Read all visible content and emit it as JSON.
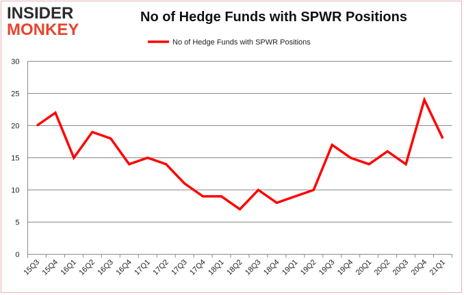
{
  "logo": {
    "line1": "INSIDER",
    "line2": "MONKEY"
  },
  "chart_data": {
    "type": "line",
    "title": "No of Hedge Funds with SPWR Positions",
    "categories": [
      "15Q3",
      "15Q4",
      "16Q1",
      "16Q2",
      "16Q3",
      "16Q4",
      "17Q1",
      "17Q2",
      "17Q3",
      "17Q4",
      "18Q1",
      "18Q2",
      "18Q3",
      "18Q4",
      "19Q1",
      "19Q2",
      "19Q3",
      "19Q4",
      "20Q1",
      "20Q2",
      "20Q3",
      "20Q4",
      "21Q1"
    ],
    "series": [
      {
        "name": "No of Hedge Funds with SPWR Positions",
        "color": "#ff0000",
        "values": [
          20,
          22,
          15,
          19,
          18,
          14,
          15,
          14,
          11,
          9,
          9,
          7,
          10,
          8,
          9,
          10,
          17,
          15,
          14,
          16,
          14,
          24,
          18
        ]
      }
    ],
    "ylim": [
      0,
      30
    ],
    "yticks": [
      0,
      5,
      10,
      15,
      20,
      25,
      30
    ],
    "grid": true,
    "legend": "top-center",
    "xlabel": "",
    "ylabel": ""
  }
}
